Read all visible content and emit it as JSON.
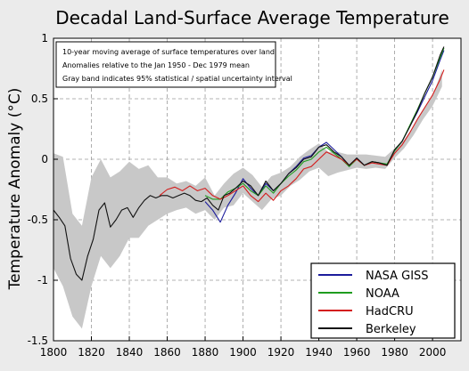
{
  "chart_data": {
    "type": "line",
    "title": "Decadal Land-Surface Average Temperature",
    "xlabel": "",
    "ylabel": "Temperature Anomaly (°C)",
    "xlim": [
      1800,
      2015
    ],
    "ylim": [
      -1.5,
      1.0
    ],
    "x_ticks": [
      "1800",
      "1820",
      "1840",
      "1860",
      "1880",
      "1900",
      "1920",
      "1940",
      "1960",
      "1980",
      "2000"
    ],
    "y_ticks": [
      "1",
      "0.5",
      "0",
      "-0.5",
      "-1",
      "-1.5"
    ],
    "grid": true,
    "legend_position": "bottom-right",
    "annotations": [
      "10-year moving average of surface temperatures over land",
      "Anomalies relative to the Jan 1950 - Dec 1979 mean",
      "Gray band indicates 95% statistical / spatial uncertainty interval"
    ],
    "uncertainty_band": {
      "x": [
        1800,
        1805,
        1810,
        1815,
        1820,
        1825,
        1830,
        1835,
        1840,
        1845,
        1850,
        1855,
        1860,
        1865,
        1870,
        1875,
        1880,
        1885,
        1890,
        1895,
        1900,
        1905,
        1910,
        1915,
        1920,
        1925,
        1930,
        1935,
        1940,
        1945,
        1950,
        1955,
        1960,
        1965,
        1970,
        1975,
        1980,
        1985,
        1990,
        1995,
        2000,
        2005
      ],
      "lower": [
        -0.9,
        -1.05,
        -1.3,
        -1.4,
        -1.05,
        -0.8,
        -0.9,
        -0.8,
        -0.65,
        -0.65,
        -0.55,
        -0.5,
        -0.45,
        -0.42,
        -0.4,
        -0.45,
        -0.42,
        -0.5,
        -0.4,
        -0.38,
        -0.28,
        -0.35,
        -0.42,
        -0.33,
        -0.3,
        -0.22,
        -0.17,
        -0.1,
        -0.07,
        -0.14,
        -0.11,
        -0.09,
        -0.07,
        -0.08,
        -0.07,
        -0.08,
        0.01,
        0.09,
        0.2,
        0.33,
        0.44,
        0.6
      ],
      "upper": [
        0.05,
        0.02,
        -0.45,
        -0.55,
        -0.15,
        0.0,
        -0.15,
        -0.1,
        -0.02,
        -0.08,
        -0.05,
        -0.15,
        -0.15,
        -0.2,
        -0.18,
        -0.22,
        -0.15,
        -0.3,
        -0.2,
        -0.12,
        -0.07,
        -0.13,
        -0.23,
        -0.14,
        -0.11,
        -0.06,
        0.02,
        0.08,
        0.13,
        0.06,
        0.06,
        0.04,
        0.04,
        0.04,
        0.03,
        0.02,
        0.09,
        0.16,
        0.27,
        0.41,
        0.52,
        0.74
      ]
    },
    "series": [
      {
        "name": "NASA GISS",
        "color": "#1c1c9c",
        "x": [
          1880,
          1884,
          1888,
          1892,
          1896,
          1900,
          1904,
          1908,
          1912,
          1916,
          1920,
          1924,
          1928,
          1932,
          1936,
          1940,
          1944,
          1948,
          1952,
          1956,
          1960,
          1964,
          1968,
          1972,
          1976,
          1980,
          1984,
          1988,
          1992,
          1996,
          2000,
          2004,
          2006
        ],
        "y": [
          -0.35,
          -0.42,
          -0.52,
          -0.38,
          -0.28,
          -0.16,
          -0.24,
          -0.3,
          -0.2,
          -0.26,
          -0.2,
          -0.12,
          -0.06,
          0.01,
          0.03,
          0.1,
          0.14,
          0.08,
          0.02,
          -0.06,
          0.01,
          -0.05,
          -0.02,
          -0.03,
          -0.05,
          0.07,
          0.15,
          0.27,
          0.39,
          0.52,
          0.65,
          0.82,
          0.9
        ]
      },
      {
        "name": "NOAA",
        "color": "#1f9c1f",
        "x": [
          1880,
          1884,
          1888,
          1892,
          1896,
          1900,
          1904,
          1908,
          1912,
          1916,
          1920,
          1924,
          1928,
          1932,
          1936,
          1940,
          1944,
          1948,
          1952,
          1956,
          1960,
          1964,
          1968,
          1972,
          1976,
          1980,
          1984,
          1988,
          1992,
          1996,
          2000,
          2004,
          2006
        ],
        "y": [
          -0.3,
          -0.33,
          -0.33,
          -0.27,
          -0.24,
          -0.2,
          -0.26,
          -0.3,
          -0.22,
          -0.28,
          -0.2,
          -0.14,
          -0.09,
          -0.02,
          0.0,
          0.06,
          0.1,
          0.05,
          0.0,
          -0.06,
          0.0,
          -0.05,
          -0.02,
          -0.03,
          -0.04,
          0.07,
          0.15,
          0.28,
          0.41,
          0.55,
          0.68,
          0.84,
          0.92
        ]
      },
      {
        "name": "HadCRU",
        "color": "#d41c1c",
        "x": [
          1856,
          1860,
          1864,
          1868,
          1872,
          1876,
          1880,
          1884,
          1888,
          1892,
          1896,
          1900,
          1904,
          1908,
          1912,
          1916,
          1920,
          1924,
          1928,
          1932,
          1936,
          1940,
          1944,
          1948,
          1952,
          1956,
          1960,
          1964,
          1968,
          1972,
          1976,
          1980,
          1984,
          1988,
          1992,
          1996,
          2000,
          2004,
          2006
        ],
        "y": [
          -0.3,
          -0.25,
          -0.23,
          -0.26,
          -0.22,
          -0.26,
          -0.24,
          -0.3,
          -0.33,
          -0.3,
          -0.26,
          -0.22,
          -0.3,
          -0.35,
          -0.28,
          -0.34,
          -0.26,
          -0.22,
          -0.16,
          -0.08,
          -0.06,
          0.0,
          0.06,
          0.03,
          0.0,
          -0.05,
          0.0,
          -0.05,
          -0.03,
          -0.04,
          -0.05,
          0.05,
          0.12,
          0.22,
          0.33,
          0.43,
          0.53,
          0.66,
          0.74
        ]
      },
      {
        "name": "Berkeley",
        "color": "#111111",
        "x": [
          1800,
          1803,
          1806,
          1809,
          1812,
          1815,
          1818,
          1821,
          1824,
          1827,
          1830,
          1833,
          1836,
          1839,
          1842,
          1845,
          1848,
          1851,
          1854,
          1857,
          1860,
          1863,
          1866,
          1869,
          1872,
          1875,
          1878,
          1881,
          1884,
          1887,
          1890,
          1893,
          1896,
          1900,
          1904,
          1908,
          1912,
          1916,
          1920,
          1924,
          1928,
          1932,
          1936,
          1940,
          1944,
          1948,
          1952,
          1956,
          1960,
          1964,
          1968,
          1972,
          1976,
          1980,
          1984,
          1988,
          1992,
          1996,
          2000,
          2004,
          2006
        ],
        "y": [
          -0.42,
          -0.48,
          -0.55,
          -0.82,
          -0.95,
          -1.0,
          -0.8,
          -0.66,
          -0.42,
          -0.36,
          -0.56,
          -0.5,
          -0.42,
          -0.4,
          -0.48,
          -0.4,
          -0.34,
          -0.3,
          -0.32,
          -0.3,
          -0.3,
          -0.32,
          -0.3,
          -0.28,
          -0.3,
          -0.34,
          -0.35,
          -0.32,
          -0.38,
          -0.42,
          -0.3,
          -0.28,
          -0.24,
          -0.18,
          -0.22,
          -0.3,
          -0.18,
          -0.26,
          -0.2,
          -0.12,
          -0.07,
          0.0,
          0.02,
          0.1,
          0.12,
          0.06,
          0.02,
          -0.05,
          0.01,
          -0.05,
          -0.02,
          -0.03,
          -0.05,
          0.08,
          0.15,
          0.27,
          0.4,
          0.55,
          0.68,
          0.86,
          0.93
        ]
      }
    ]
  }
}
